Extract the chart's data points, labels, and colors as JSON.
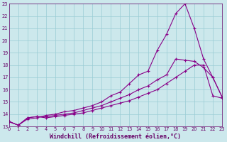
{
  "title": "",
  "xlabel": "Windchill (Refroidissement éolien,°C)",
  "ylabel": "",
  "background_color": "#cce8ec",
  "grid_color": "#99ccd4",
  "line_color": "#880088",
  "xlim": [
    0,
    23
  ],
  "ylim": [
    13,
    23
  ],
  "xticks": [
    0,
    1,
    2,
    3,
    4,
    5,
    6,
    7,
    8,
    9,
    10,
    11,
    12,
    13,
    14,
    15,
    16,
    17,
    18,
    19,
    20,
    21,
    22,
    23
  ],
  "yticks": [
    13,
    14,
    15,
    16,
    17,
    18,
    19,
    20,
    21,
    22,
    23
  ],
  "line1_x": [
    0,
    1,
    2,
    3,
    4,
    5,
    6,
    7,
    8,
    9,
    10,
    11,
    12,
    13,
    14,
    15,
    16,
    17,
    18,
    19,
    20,
    21,
    22,
    23
  ],
  "line1_y": [
    13.4,
    13.1,
    13.7,
    13.8,
    13.7,
    13.8,
    13.9,
    14.0,
    14.1,
    14.3,
    14.5,
    14.7,
    14.9,
    15.1,
    15.4,
    15.7,
    16.0,
    16.5,
    17.0,
    17.5,
    18.0,
    18.0,
    15.5,
    15.3
  ],
  "line2_x": [
    0,
    1,
    2,
    3,
    4,
    5,
    6,
    7,
    8,
    9,
    10,
    11,
    12,
    13,
    14,
    15,
    16,
    17,
    18,
    19,
    20,
    21,
    22,
    23
  ],
  "line2_y": [
    13.4,
    13.1,
    13.7,
    13.8,
    13.8,
    13.9,
    14.0,
    14.1,
    14.3,
    14.5,
    14.7,
    15.0,
    15.3,
    15.6,
    16.0,
    16.3,
    16.8,
    17.2,
    18.5,
    18.4,
    18.3,
    17.8,
    17.0,
    15.4
  ],
  "line3_x": [
    0,
    1,
    2,
    3,
    4,
    5,
    6,
    7,
    8,
    9,
    10,
    11,
    12,
    13,
    14,
    15,
    16,
    17,
    18,
    19,
    20,
    21,
    22,
    23
  ],
  "line3_y": [
    13.4,
    13.1,
    13.6,
    13.7,
    13.9,
    14.0,
    14.2,
    14.3,
    14.5,
    14.7,
    15.0,
    15.5,
    15.8,
    16.5,
    17.2,
    17.5,
    19.2,
    20.5,
    22.2,
    23.0,
    21.0,
    18.5,
    17.0,
    15.4
  ],
  "font_color": "#660066",
  "tick_fontsize": 4.8,
  "label_fontsize": 6.0
}
